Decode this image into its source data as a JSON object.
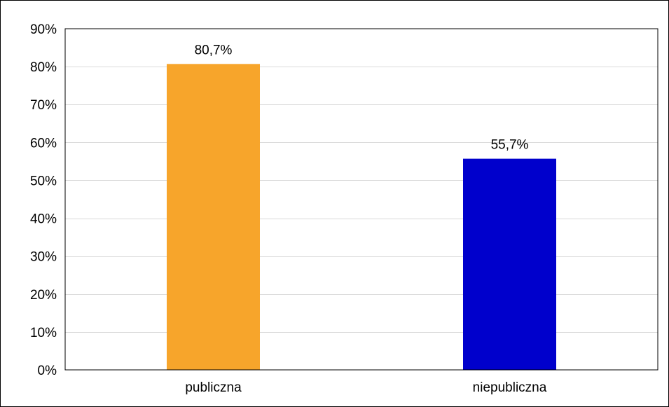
{
  "chart_data": {
    "type": "bar",
    "categories": [
      "publiczna",
      "niepubliczna"
    ],
    "values": [
      80.7,
      55.7
    ],
    "data_labels": [
      "80,7%",
      "55,7%"
    ],
    "colors": [
      "#F7A52B",
      "#0000CC"
    ],
    "ylim": [
      0,
      90
    ],
    "yticks": [
      0,
      10,
      20,
      30,
      40,
      50,
      60,
      70,
      80,
      90
    ],
    "ytick_labels": [
      "0%",
      "10%",
      "20%",
      "30%",
      "40%",
      "50%",
      "60%",
      "70%",
      "80%",
      "90%"
    ],
    "grid": true,
    "gridline_color": "#D9D9D9",
    "legend": "none"
  }
}
